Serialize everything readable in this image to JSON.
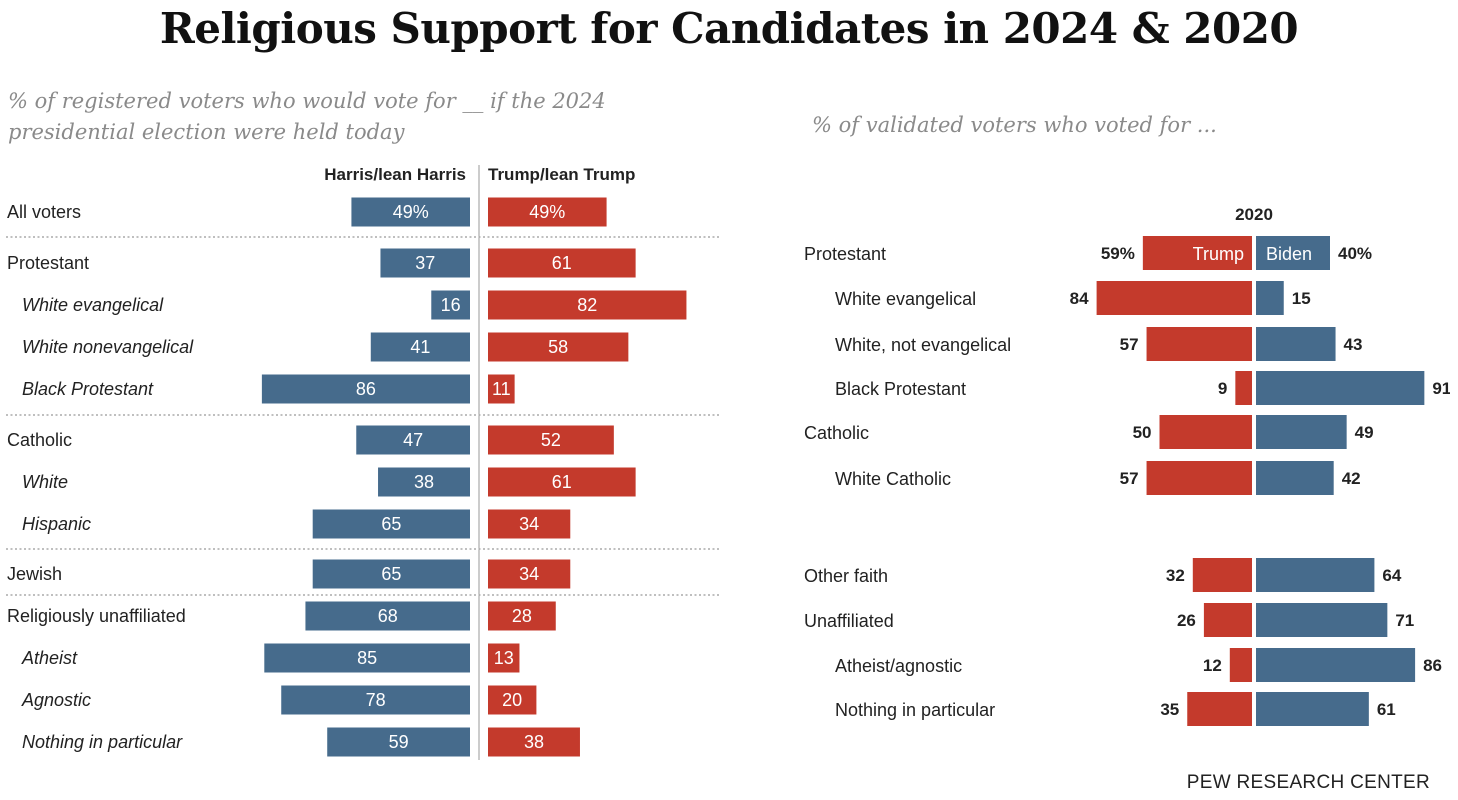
{
  "title": "Religious Support for Candidates in 2024 & 2020",
  "source": "PEW RESEARCH CENTER",
  "colors": {
    "democrat": "#466b8c",
    "republican": "#c43a2c"
  },
  "chart_data": [
    {
      "type": "bar",
      "subtitle": "% of registered voters who would vote for __ if the 2024 presidential election were held today",
      "series": [
        {
          "name": "Harris/lean Harris",
          "color": "#466b8c",
          "values": [
            49,
            37,
            16,
            41,
            86,
            47,
            38,
            65,
            65,
            68,
            85,
            78,
            59
          ]
        },
        {
          "name": "Trump/lean Trump",
          "color": "#c43a2c",
          "values": [
            49,
            61,
            82,
            58,
            11,
            52,
            61,
            34,
            34,
            28,
            13,
            20,
            38
          ]
        }
      ],
      "categories": [
        "All voters",
        "Protestant",
        "White evangelical",
        "White nonevangelical",
        "Black Protestant",
        "Catholic",
        "White",
        "Hispanic",
        "Jewish",
        "Religiously unaffiliated",
        "Atheist",
        "Agnostic",
        "Nothing in particular"
      ],
      "subgroup": [
        false,
        false,
        true,
        true,
        true,
        false,
        true,
        true,
        false,
        false,
        true,
        true,
        true
      ],
      "group_break_after": [
        0,
        4,
        7,
        8
      ],
      "value_suffix_first": "%",
      "xlim": [
        0,
        100
      ],
      "grid": false
    },
    {
      "type": "bar",
      "subtitle": "% of validated voters who voted for ...",
      "year_label": "2020",
      "series": [
        {
          "name": "Trump",
          "color": "#c43a2c",
          "values": [
            59,
            84,
            57,
            9,
            50,
            57,
            32,
            26,
            12,
            35
          ]
        },
        {
          "name": "Biden",
          "color": "#466b8c",
          "values": [
            40,
            15,
            43,
            91,
            49,
            42,
            64,
            71,
            86,
            61
          ]
        }
      ],
      "categories": [
        "Protestant",
        "White evangelical",
        "White, not evangelical",
        "Black Protestant",
        "Catholic",
        "White Catholic",
        "Other faith",
        "Unaffiliated",
        "Atheist/agnostic",
        "Nothing in particular"
      ],
      "subgroup": [
        false,
        true,
        true,
        true,
        false,
        true,
        false,
        false,
        true,
        true
      ],
      "value_suffix_first": "%",
      "xlim": [
        0,
        100
      ],
      "grid": false
    }
  ]
}
